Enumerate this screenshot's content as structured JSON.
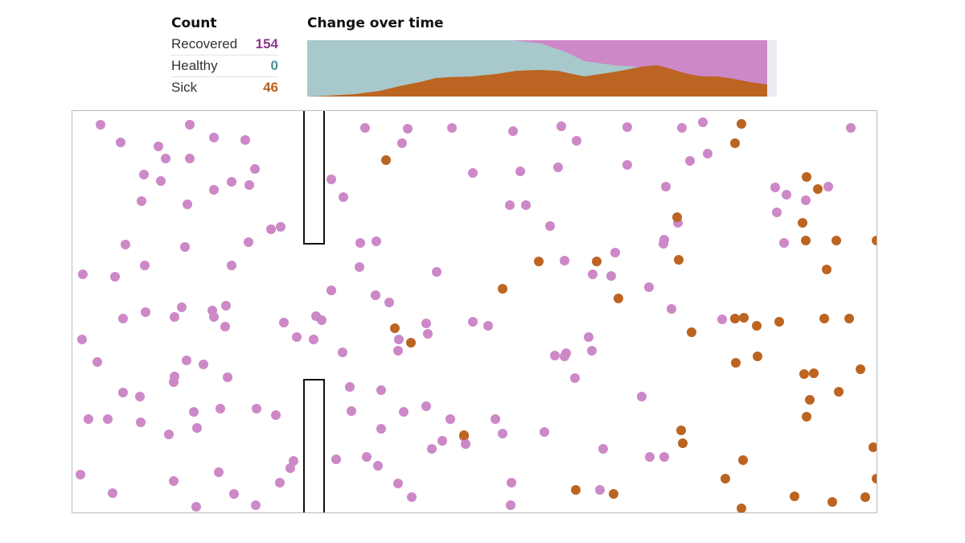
{
  "count_panel": {
    "title": "Count",
    "rows": [
      {
        "label": "Recovered",
        "value": "154",
        "color": "#8e3a8e"
      },
      {
        "label": "Healthy",
        "value": "0",
        "color": "#4f8f95"
      },
      {
        "label": "Sick",
        "value": "46",
        "color": "#b5611f"
      }
    ]
  },
  "change_panel": {
    "title": "Change over time"
  },
  "colors": {
    "recovered": "#cc88c7",
    "healthy": "#a8c9cb",
    "sick": "#bc6421",
    "wall": "#111111",
    "border": "#bdbdbd",
    "future": "#ececf1"
  },
  "simulation": {
    "status_counts": {
      "recovered": 154,
      "healthy": 0,
      "sick": 46
    },
    "elapsed_fraction": 0.985
  }
}
